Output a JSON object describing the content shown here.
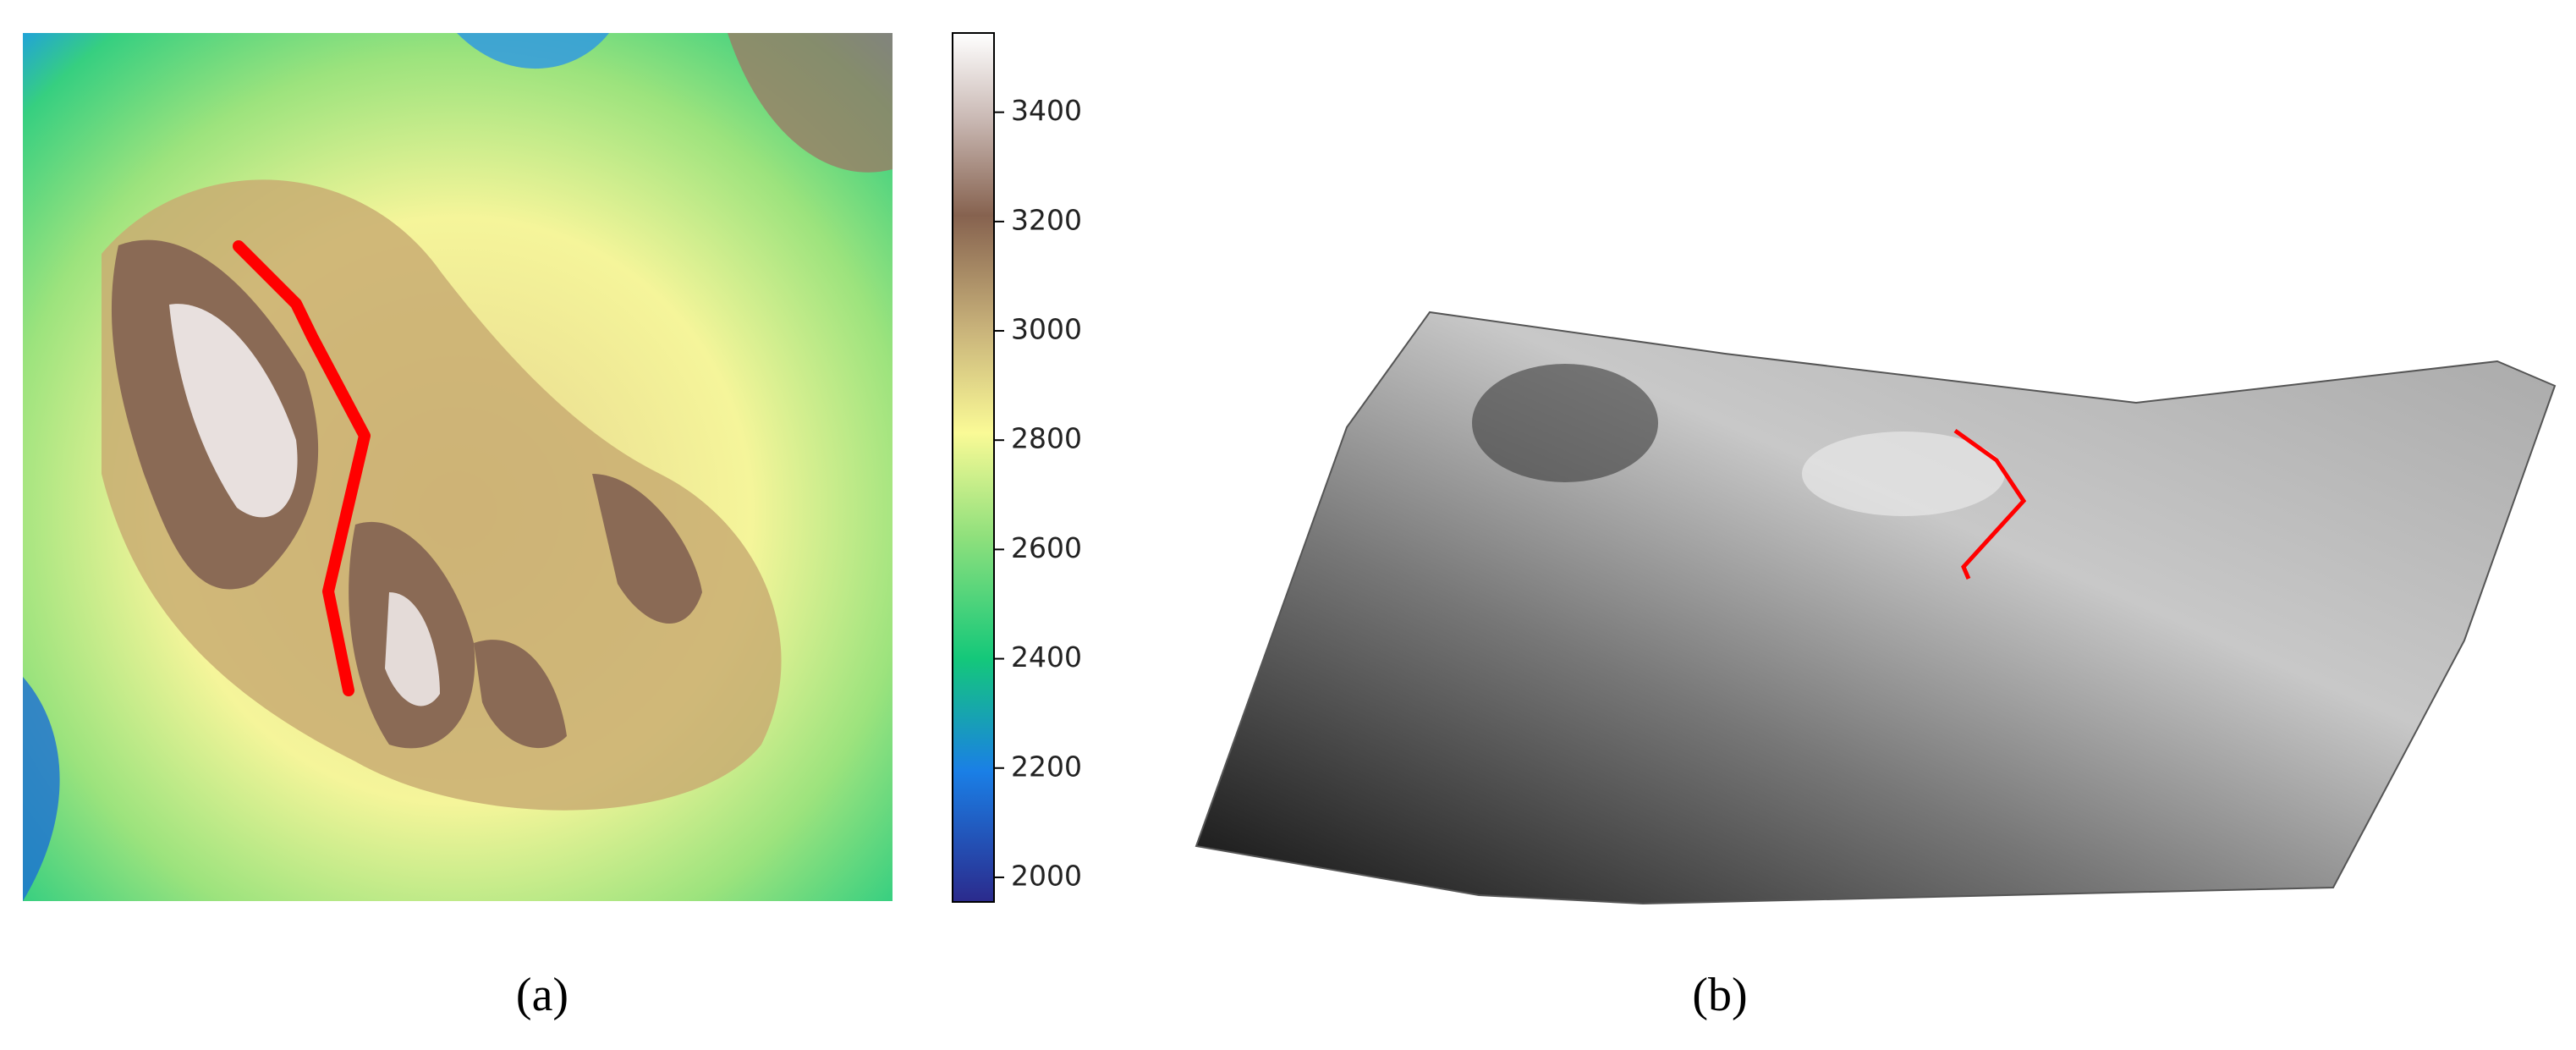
{
  "panels": [
    {
      "label": "(a)"
    },
    {
      "label": "(b)"
    }
  ],
  "colorbar": {
    "lim": [
      1955,
      3545
    ],
    "ticks": [
      2000,
      2200,
      2400,
      2600,
      2800,
      3000,
      3200,
      3400
    ]
  }
}
